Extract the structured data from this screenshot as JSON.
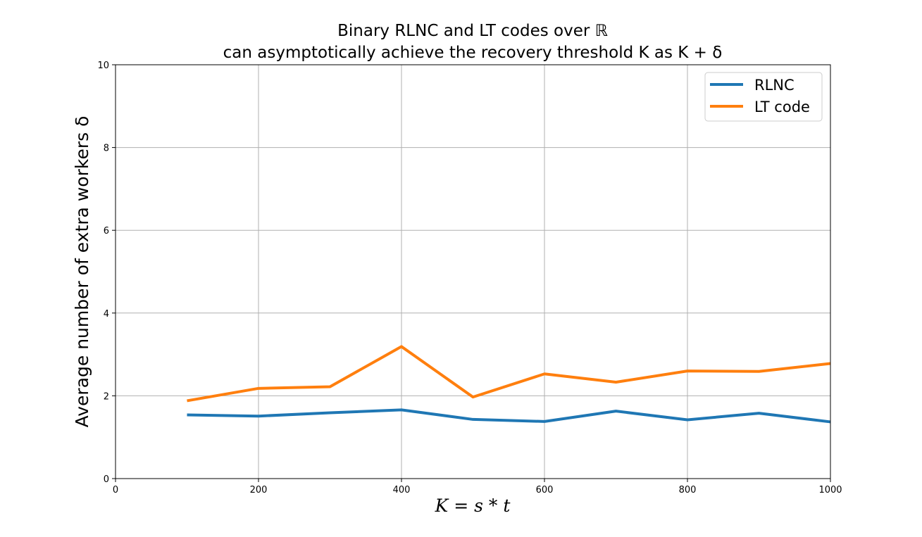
{
  "chart_data": {
    "type": "line",
    "title_line1": "Binary RLNC and LT codes over ℝ",
    "title_line2": "can asymptotically achieve the recovery threshold K as K + δ",
    "xlabel": "K = s * t",
    "ylabel": "Average number of extra workers δ",
    "xlim": [
      0,
      1000
    ],
    "ylim": [
      0,
      10
    ],
    "xticks": [
      0,
      200,
      400,
      600,
      800,
      1000
    ],
    "yticks": [
      0,
      2,
      4,
      6,
      8,
      10
    ],
    "grid": true,
    "legend_position": "top-right",
    "x": [
      100,
      200,
      300,
      400,
      500,
      600,
      700,
      800,
      900,
      1000
    ],
    "series": [
      {
        "name": "RLNC",
        "color": "#1f77b4",
        "values": [
          1.54,
          1.51,
          1.59,
          1.66,
          1.43,
          1.38,
          1.63,
          1.42,
          1.58,
          1.37
        ]
      },
      {
        "name": "LT code",
        "color": "#ff7f0e",
        "values": [
          1.88,
          2.18,
          2.22,
          3.19,
          1.97,
          2.53,
          2.33,
          2.6,
          2.59,
          2.78
        ]
      }
    ]
  }
}
